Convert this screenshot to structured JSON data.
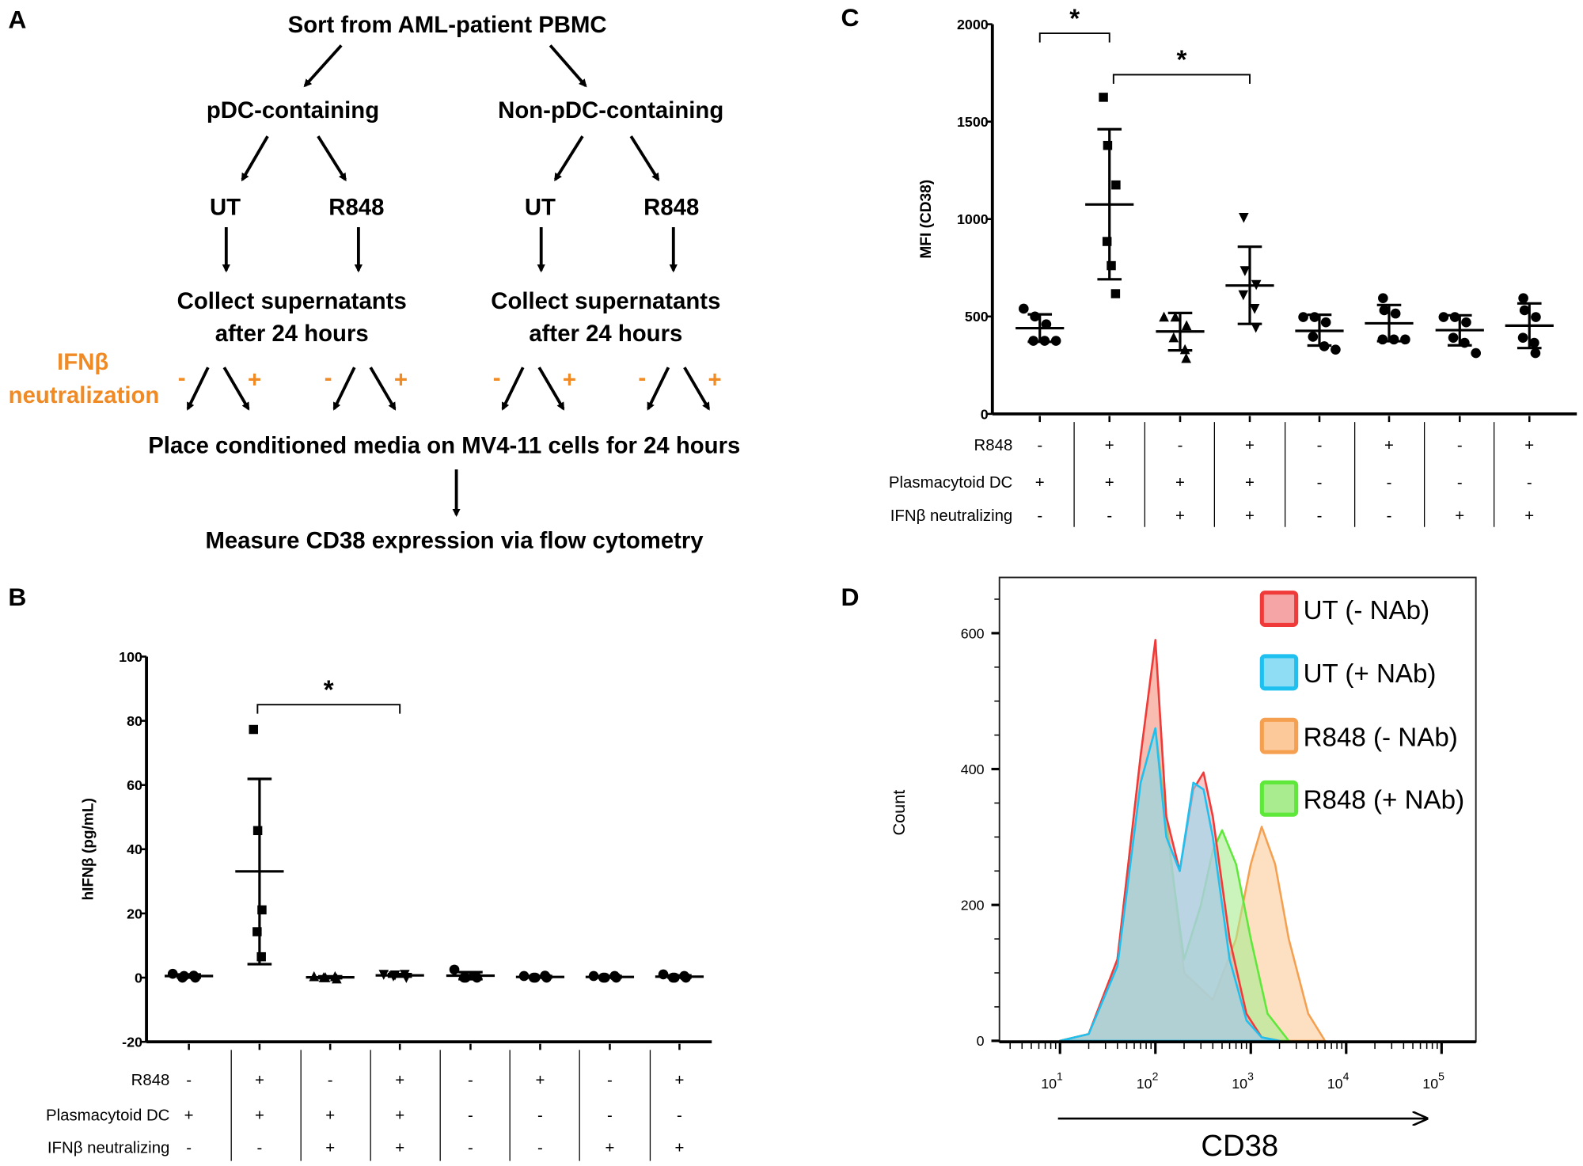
{
  "panel_letters": {
    "a": "A",
    "b": "B",
    "c": "C",
    "d": "D"
  },
  "panel_a": {
    "source": "Sort from AML-patient PBMC",
    "branch_left": "pDC-containing",
    "branch_right": "Non-pDC-containing",
    "treatments": [
      "UT",
      "R848",
      "UT",
      "R848"
    ],
    "collect_line1": "Collect supernatants",
    "collect_line2": "after 24 hours",
    "neutralization_line1": "IFNβ",
    "neutralization_line2": "neutralization",
    "minus": "-",
    "plus": "+",
    "place_step": "Place conditioned media on MV4-11 cells for 24 hours",
    "measure_step": "Measure CD38 expression via flow cytometry",
    "accent_color": "#f08a24"
  },
  "conditions": {
    "row_labels": [
      "R848",
      "Plasmacytoid DC",
      "IFNβ neutralizing"
    ],
    "rows": [
      [
        "-",
        "+",
        "-",
        "+",
        "-",
        "+",
        "-",
        "+"
      ],
      [
        "+",
        "+",
        "+",
        "+",
        "-",
        "-",
        "-",
        "-"
      ],
      [
        "-",
        "-",
        "+",
        "+",
        "-",
        "-",
        "+",
        "+"
      ]
    ]
  },
  "chart_data": [
    {
      "panel": "B",
      "type": "scatter",
      "ylabel": "hIFNβ (pg/mL)",
      "ylim": [
        -20,
        100
      ],
      "yticks": [
        "100",
        "80",
        "60",
        "40",
        "20",
        "0",
        "-20"
      ],
      "markers": [
        "circle",
        "square",
        "triangle-up",
        "triangle-down",
        "circle",
        "circle",
        "circle",
        "circle"
      ],
      "groups": [
        {
          "values": [
            1.2,
            0.5,
            0,
            0,
            0.6
          ],
          "mean": 0.5,
          "sd_low": 0,
          "sd_high": 1
        },
        {
          "values": [
            77.3,
            45.8,
            21.1,
            14.3,
            6.5
          ],
          "mean": 33.1,
          "sd_low": 4.2,
          "sd_high": 61.9
        },
        {
          "values": [
            0.3,
            0,
            -0.4,
            0,
            0.3
          ],
          "mean": 0.1,
          "sd_low": -0.2,
          "sd_high": 0.4
        },
        {
          "values": [
            1.0,
            0.8,
            0,
            0.5,
            1.0
          ],
          "mean": 0.7,
          "sd_low": 0.3,
          "sd_high": 1.1
        },
        {
          "values": [
            2.5,
            0,
            0,
            0,
            0.5
          ],
          "mean": 0.6,
          "sd_low": -0.5,
          "sd_high": 1.7
        },
        {
          "values": [
            0.5,
            0,
            0,
            0,
            0.6
          ],
          "mean": 0.2,
          "sd_low": 0,
          "sd_high": 0.5
        },
        {
          "values": [
            0.5,
            0,
            0,
            0,
            0.5
          ],
          "mean": 0.2,
          "sd_low": 0,
          "sd_high": 0.5
        },
        {
          "values": [
            1.0,
            0,
            0,
            0,
            0.5
          ],
          "mean": 0.3,
          "sd_low": 0,
          "sd_high": 0.7
        }
      ],
      "significance": [
        {
          "from": 2,
          "to": 4,
          "label": "*"
        }
      ]
    },
    {
      "panel": "C",
      "type": "scatter",
      "ylabel": "MFI (CD38)",
      "ylim": [
        0,
        2000
      ],
      "yticks": [
        "2000",
        "1500",
        "1000",
        "500",
        "0"
      ],
      "markers": [
        "circle",
        "square",
        "triangle-up",
        "triangle-down",
        "circle",
        "circle",
        "circle",
        "circle"
      ],
      "groups": [
        {
          "values": [
            540,
            500,
            460,
            375,
            375,
            375
          ],
          "mean": 440,
          "sd_low": 370,
          "sd_high": 511
        },
        {
          "values": [
            1625,
            1378,
            1175,
            885,
            761,
            617
          ],
          "mean": 1075,
          "sd_low": 691,
          "sd_high": 1461
        },
        {
          "values": [
            497,
            497,
            453,
            391,
            330,
            285
          ],
          "mean": 423,
          "sd_low": 326,
          "sd_high": 518
        },
        {
          "values": [
            1008,
            735,
            664,
            611,
            541,
            444
          ],
          "mean": 659,
          "sd_low": 462,
          "sd_high": 858
        },
        {
          "values": [
            497,
            497,
            470,
            396,
            347,
            330
          ],
          "mean": 426,
          "sd_low": 351,
          "sd_high": 509
        },
        {
          "values": [
            594,
            532,
            515,
            382,
            382,
            382
          ],
          "mean": 465,
          "sd_low": 373,
          "sd_high": 559
        },
        {
          "values": [
            497,
            497,
            470,
            391,
            365,
            312
          ],
          "mean": 430,
          "sd_low": 352,
          "sd_high": 506
        },
        {
          "values": [
            594,
            532,
            497,
            391,
            365,
            312
          ],
          "mean": 453,
          "sd_low": 338,
          "sd_high": 567
        }
      ],
      "significance": [
        {
          "from": 1,
          "to": 2,
          "label": "*"
        },
        {
          "from": 2,
          "to": 4,
          "label": "*"
        }
      ]
    },
    {
      "panel": "D",
      "type": "area",
      "xlabel": "CD38",
      "ylabel": "Count",
      "xscale": "log",
      "ylim": [
        0,
        680
      ],
      "yticks": [
        "600",
        "400",
        "200",
        "0"
      ],
      "xticks": [
        {
          "base": "10",
          "exp": "1"
        },
        {
          "base": "10",
          "exp": "2"
        },
        {
          "base": "10",
          "exp": "3"
        },
        {
          "base": "10",
          "exp": "4"
        },
        {
          "base": "10",
          "exp": "5"
        }
      ],
      "legend_position": "top-right",
      "series": [
        {
          "name": "UT (- NAb)",
          "color": "#f03a3a",
          "fill": "#f5a5a5",
          "x": [
            10,
            20,
            40,
            70,
            100,
            130,
            180,
            250,
            320,
            400,
            600,
            900,
            1300,
            2000
          ],
          "y": [
            0,
            10,
            120,
            420,
            590,
            330,
            250,
            370,
            395,
            330,
            150,
            40,
            5,
            0
          ]
        },
        {
          "name": "UT (+ NAb)",
          "color": "#1ec0f0",
          "fill": "#8fdcf5",
          "x": [
            10,
            20,
            40,
            70,
            100,
            130,
            180,
            250,
            320,
            400,
            600,
            900,
            1300,
            2000
          ],
          "y": [
            0,
            10,
            110,
            380,
            460,
            300,
            250,
            380,
            370,
            300,
            120,
            30,
            5,
            0
          ]
        },
        {
          "name": "R848 (- NAb)",
          "color": "#f5a050",
          "fill": "#fbc99a",
          "x": [
            10,
            20,
            40,
            70,
            100,
            130,
            200,
            400,
            700,
            1000,
            1300,
            1800,
            2500,
            4000,
            6000
          ],
          "y": [
            0,
            10,
            120,
            420,
            585,
            330,
            100,
            60,
            150,
            260,
            315,
            260,
            150,
            40,
            0
          ]
        },
        {
          "name": "R848 (+ NAb)",
          "color": "#5ee83a",
          "fill": "#a9ec90",
          "x": [
            10,
            20,
            40,
            70,
            100,
            150,
            200,
            300,
            400,
            500,
            700,
            1000,
            1500,
            2500
          ],
          "y": [
            0,
            10,
            110,
            380,
            460,
            250,
            120,
            200,
            280,
            310,
            260,
            150,
            40,
            0
          ]
        }
      ]
    }
  ]
}
